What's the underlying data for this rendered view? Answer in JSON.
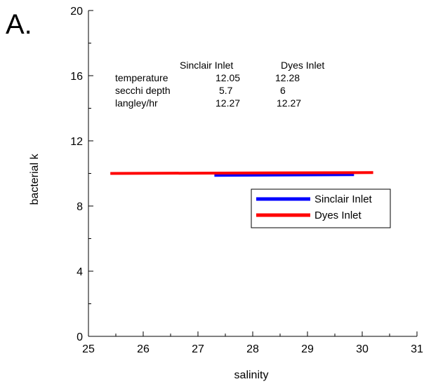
{
  "panel_label": "A.",
  "chart_data": {
    "type": "line",
    "title": "",
    "xlabel": "salinity",
    "ylabel": "bacterial k",
    "xlim": [
      25,
      31
    ],
    "ylim": [
      0,
      20
    ],
    "x_ticks": [
      25,
      26,
      27,
      28,
      29,
      30,
      31
    ],
    "y_ticks": [
      0,
      4,
      8,
      12,
      16,
      20
    ],
    "x_tick_labels": [
      "25",
      "26",
      "27",
      "28",
      "29",
      "30",
      "31"
    ],
    "y_tick_labels": [
      "0",
      "4",
      "8",
      "12",
      "16",
      "20"
    ],
    "grid": false,
    "legend_position": "right",
    "series": [
      {
        "name": "Sinclair Inlet",
        "color": "#0000ff",
        "x": [
          27.3,
          29.85
        ],
        "y": [
          9.9,
          9.95
        ]
      },
      {
        "name": "Dyes Inlet",
        "color": "#ff0000",
        "x": [
          25.4,
          30.2
        ],
        "y": [
          10.0,
          10.05
        ]
      }
    ],
    "annotation_table": {
      "headers": [
        "Sinclair Inlet",
        "Dyes Inlet"
      ],
      "rows": [
        {
          "label": "temperature",
          "values": [
            "12.05",
            "12.28"
          ]
        },
        {
          "label": "secchi depth",
          "values": [
            "5.7",
            "6"
          ]
        },
        {
          "label": "langley/hr",
          "values": [
            "12.27",
            "12.27"
          ]
        }
      ]
    }
  }
}
